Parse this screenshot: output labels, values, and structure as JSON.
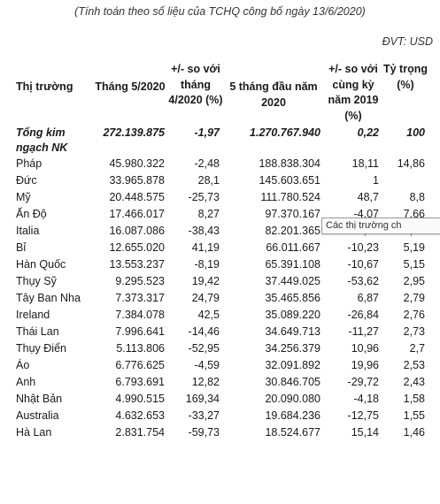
{
  "caption": "(Tính toán theo số liệu của TCHQ công bố ngày 13/6/2020)",
  "unit": "ĐVT: USD",
  "headers": {
    "market": "Thị trường",
    "month": "Tháng 5/2020",
    "vs_prev": "+/- so với tháng 4/2020 (%)",
    "five_months": "5 tháng đầu năm 2020",
    "vs_yoy": "+/- so với cùng kỳ năm 2019 (%)",
    "share": "Tỷ trọng (%)"
  },
  "total": {
    "market": "Tổng kim ngạch NK",
    "month": "272.139.875",
    "vs_prev": "-1,97",
    "five_months": "1.270.767.940",
    "vs_yoy": "0,22",
    "share": "100"
  },
  "rows": [
    {
      "market": "Pháp",
      "month": "45.980.322",
      "vs_prev": "-2,48",
      "five_months": "188.838.304",
      "vs_yoy": "18,11",
      "share": "14,86"
    },
    {
      "market": "Đức",
      "month": "33.965.878",
      "vs_prev": "28,1",
      "five_months": "145.603.651",
      "vs_yoy": "1",
      "share": ""
    },
    {
      "market": "Mỹ",
      "month": "20.448.575",
      "vs_prev": "-25,73",
      "five_months": "111.780.524",
      "vs_yoy": "48,7",
      "share": "8,8"
    },
    {
      "market": "Ấn Độ",
      "month": "17.466.017",
      "vs_prev": "8,27",
      "five_months": "97.370.167",
      "vs_yoy": "-4,07",
      "share": "7,66"
    },
    {
      "market": "Italia",
      "month": "16.087.086",
      "vs_prev": "-38,43",
      "five_months": "82.201.365",
      "vs_yoy": "33,35",
      "share": "6,47"
    },
    {
      "market": "Bỉ",
      "month": "12.655.020",
      "vs_prev": "41,19",
      "five_months": "66.011.667",
      "vs_yoy": "-10,23",
      "share": "5,19"
    },
    {
      "market": "Hàn Quốc",
      "month": "13.553.237",
      "vs_prev": "-8,19",
      "five_months": "65.391.108",
      "vs_yoy": "-10,67",
      "share": "5,15"
    },
    {
      "market": "Thụy Sỹ",
      "month": "9.295.523",
      "vs_prev": "19,42",
      "five_months": "37.449.025",
      "vs_yoy": "-53,62",
      "share": "2,95"
    },
    {
      "market": "Tây Ban Nha",
      "month": "7.373.317",
      "vs_prev": "24,79",
      "five_months": "35.465.856",
      "vs_yoy": "6,87",
      "share": "2,79"
    },
    {
      "market": "Ireland",
      "month": "7.384.078",
      "vs_prev": "42,5",
      "five_months": "35.089.220",
      "vs_yoy": "-26,84",
      "share": "2,76"
    },
    {
      "market": "Thái Lan",
      "month": "7.996.641",
      "vs_prev": "-14,46",
      "five_months": "34.649.713",
      "vs_yoy": "-11,27",
      "share": "2,73"
    },
    {
      "market": "Thụy Điển",
      "month": "5.113.806",
      "vs_prev": "-52,95",
      "five_months": "34.256.379",
      "vs_yoy": "10,96",
      "share": "2,7"
    },
    {
      "market": "Áo",
      "month": "6.776.625",
      "vs_prev": "-4,59",
      "five_months": "32.091.892",
      "vs_yoy": "19,96",
      "share": "2,53"
    },
    {
      "market": "Anh",
      "month": "6.793.691",
      "vs_prev": "12,82",
      "five_months": "30.846.705",
      "vs_yoy": "-29,72",
      "share": "2,43"
    },
    {
      "market": "Nhật Bản",
      "month": "4.990.515",
      "vs_prev": "169,34",
      "five_months": "20.090.080",
      "vs_yoy": "-4,18",
      "share": "1,58"
    },
    {
      "market": "Australia",
      "month": "4.632.653",
      "vs_prev": "-33,27",
      "five_months": "19.684.236",
      "vs_yoy": "-12,75",
      "share": "1,55"
    },
    {
      "market": "Hà Lan",
      "month": "2.831.754",
      "vs_prev": "-59,73",
      "five_months": "18.524.677",
      "vs_yoy": "15,14",
      "share": "1,46"
    }
  ],
  "tooltip": "Các thị trường ch"
}
